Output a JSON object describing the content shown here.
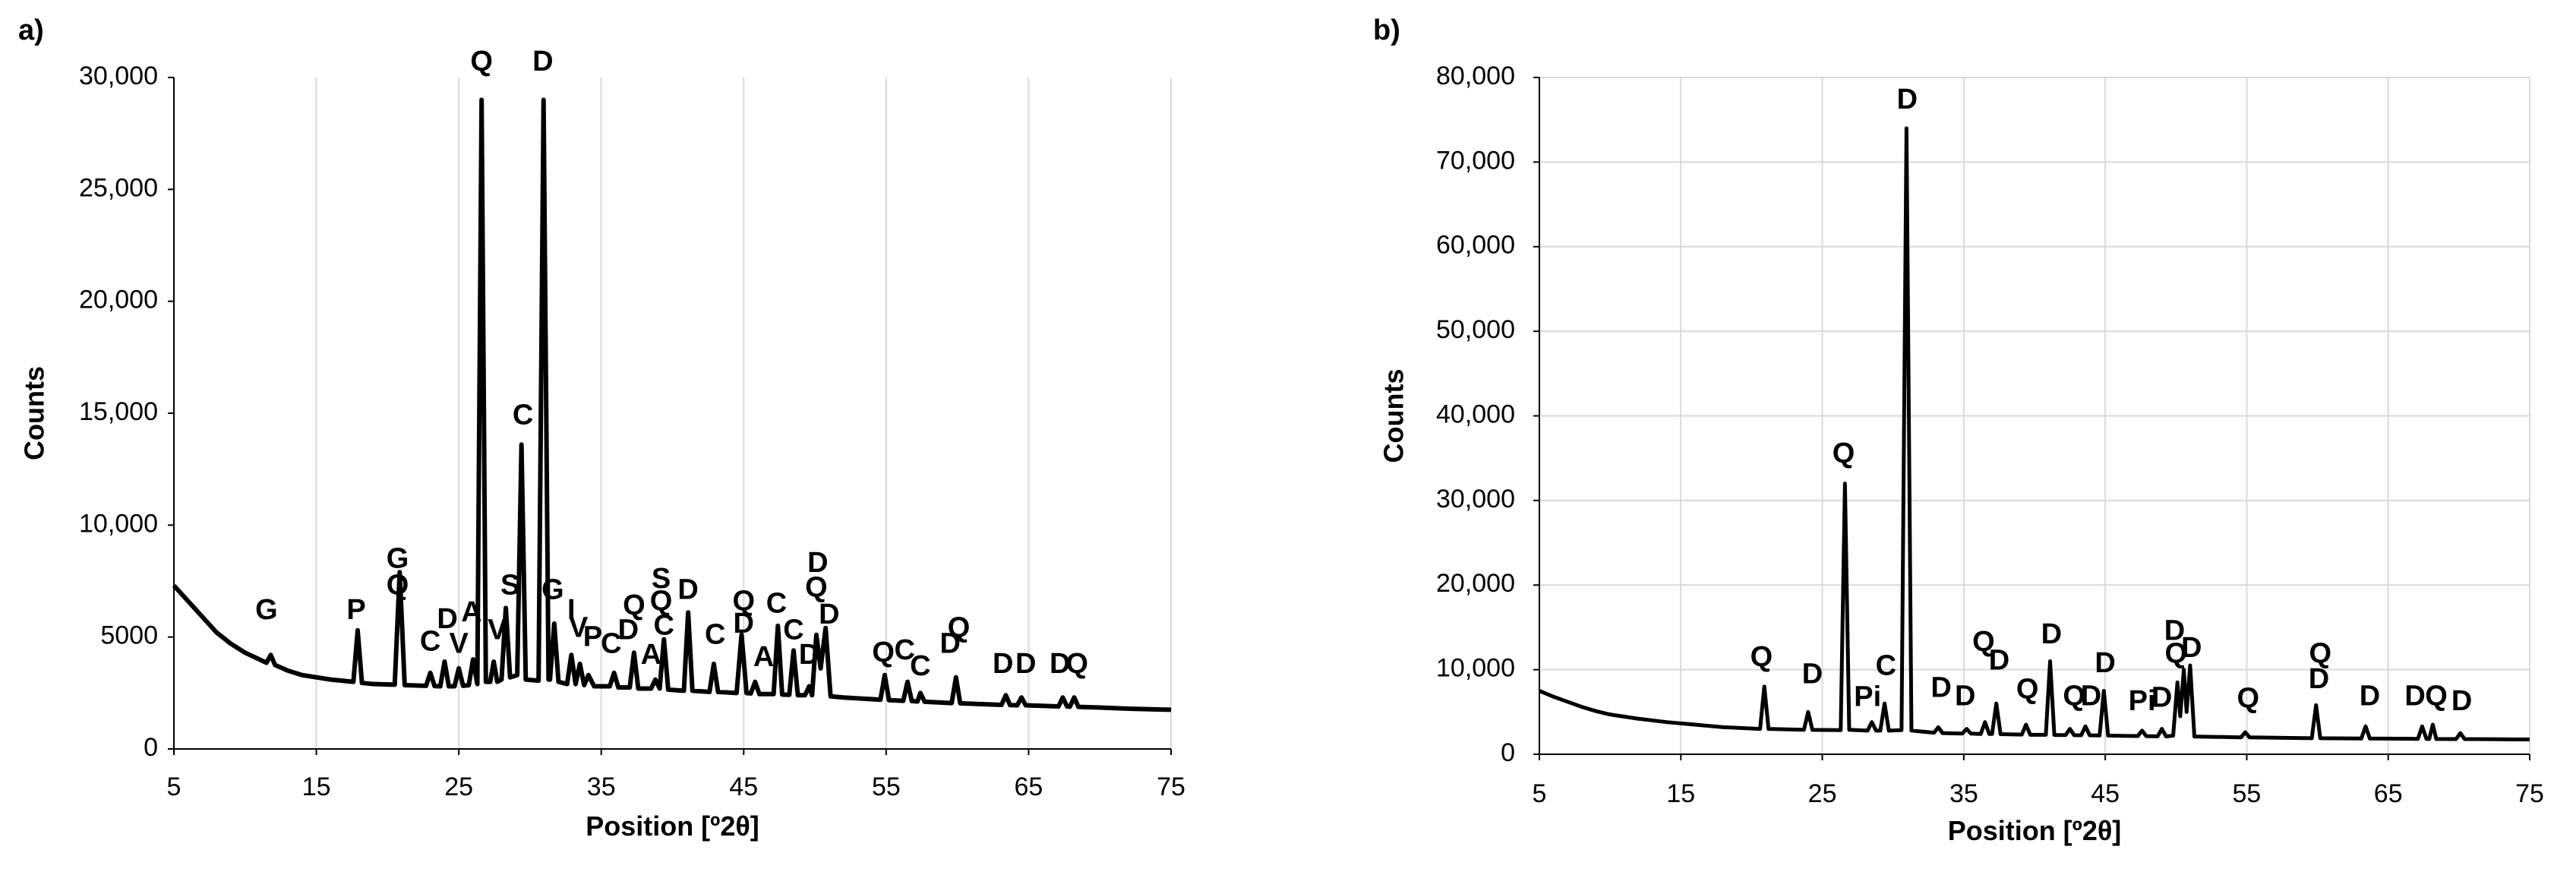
{
  "chart_data": [
    {
      "type": "line",
      "panel_label": "a)",
      "xlabel": "Position [º2θ]",
      "ylabel": "Counts",
      "color": "#000000",
      "grid": "x",
      "xlim": [
        5,
        75
      ],
      "xticks": [
        5,
        15,
        25,
        35,
        45,
        55,
        65,
        75
      ],
      "ylim": [
        0,
        30000
      ],
      "yticks": [
        0,
        5000,
        {
          "value": 10000,
          "label": "10,000"
        },
        {
          "value": 15000,
          "label": "15,000"
        },
        {
          "value": 20000,
          "label": "20,000"
        },
        {
          "value": 25000,
          "label": "25,000"
        },
        {
          "value": 30000,
          "label": "30,000"
        }
      ],
      "x": [
        5,
        6,
        7,
        8,
        9,
        10,
        11,
        11.5,
        11.8,
        12.1,
        13,
        14,
        16,
        17.6,
        17.9,
        18.2,
        19,
        20.5,
        20.85,
        21.2,
        22.7,
        23.0,
        23.3,
        23.7,
        24.0,
        24.3,
        24.7,
        25.0,
        25.3,
        25.7,
        26.0,
        26.3,
        26.6,
        26.9,
        27.2,
        27.45,
        27.7,
        28.0,
        28.3,
        28.6,
        29.1,
        29.4,
        29.7,
        30.6,
        30.95,
        31.3,
        31.4,
        31.7,
        32.0,
        32.6,
        32.9,
        33.2,
        33.5,
        33.8,
        34.1,
        34.5,
        35.6,
        35.9,
        36.2,
        37.0,
        37.3,
        37.6,
        38.5,
        38.8,
        39.1,
        39.4,
        39.7,
        40.8,
        41.1,
        41.4,
        42.6,
        42.9,
        43.2,
        44.5,
        44.85,
        45.2,
        45.5,
        45.8,
        46.1,
        47.1,
        47.4,
        47.7,
        48.2,
        48.5,
        48.8,
        49.3,
        49.6,
        49.8,
        50.1,
        50.4,
        50.75,
        51.1,
        52,
        54.6,
        54.9,
        55.2,
        56.2,
        56.5,
        56.8,
        57.2,
        57.4,
        57.7,
        59.6,
        59.9,
        60.2,
        63.1,
        63.4,
        63.7,
        64.2,
        64.5,
        64.8,
        67.1,
        67.4,
        67.7,
        67.9,
        68.2,
        68.5,
        70,
        72,
        75
      ],
      "values": [
        7300,
        6600,
        5900,
        5200,
        4700,
        4300,
        4000,
        3850,
        4200,
        3750,
        3500,
        3300,
        3100,
        3000,
        5300,
        2950,
        2900,
        2870,
        7900,
        2850,
        2820,
        3400,
        2810,
        2800,
        3900,
        2800,
        2800,
        3600,
        2820,
        2850,
        4000,
        2900,
        29000,
        3000,
        3000,
        3900,
        3000,
        3100,
        6300,
        3200,
        3300,
        13600,
        3100,
        3050,
        29000,
        3100,
        3100,
        5600,
        3000,
        2900,
        4200,
        2900,
        3800,
        2850,
        3300,
        2800,
        2800,
        3400,
        2750,
        2750,
        4300,
        2700,
        2700,
        3100,
        2700,
        4900,
        2650,
        2600,
        6100,
        2600,
        2550,
        3800,
        2550,
        2500,
        5100,
        2500,
        2480,
        3000,
        2450,
        2450,
        5500,
        2430,
        2420,
        4400,
        2400,
        2400,
        2800,
        2400,
        5100,
        3600,
        5400,
        2350,
        2300,
        2200,
        3300,
        2180,
        2150,
        3000,
        2140,
        2120,
        2500,
        2110,
        2050,
        3200,
        2040,
        1970,
        2400,
        1960,
        1950,
        2300,
        1950,
        1900,
        2300,
        1900,
        1890,
        2300,
        1880,
        1850,
        1800,
        1750
      ],
      "annotations": [
        {
          "text": "G",
          "x": 11.5,
          "y": 5800
        },
        {
          "text": "P",
          "x": 17.8,
          "y": 5800
        },
        {
          "text": "G",
          "x": 20.7,
          "y": 8100
        },
        {
          "text": "Q",
          "x": 20.7,
          "y": 6900
        },
        {
          "text": "C",
          "x": 23,
          "y": 4400
        },
        {
          "text": "D",
          "x": 24.2,
          "y": 5400
        },
        {
          "text": "V",
          "x": 25,
          "y": 4300
        },
        {
          "text": "A",
          "x": 25.9,
          "y": 5700
        },
        {
          "text": "Q",
          "x": 26.6,
          "y": 30300
        },
        {
          "text": "V",
          "x": 27.7,
          "y": 4900
        },
        {
          "text": "S",
          "x": 28.6,
          "y": 6900
        },
        {
          "text": "C",
          "x": 29.5,
          "y": 14500
        },
        {
          "text": "D",
          "x": 30.9,
          "y": 30300
        },
        {
          "text": "G",
          "x": 31.6,
          "y": 6700
        },
        {
          "text": "I",
          "x": 32.9,
          "y": 5800
        },
        {
          "text": "V",
          "x": 33.4,
          "y": 5000
        },
        {
          "text": "P",
          "x": 34.4,
          "y": 4600
        },
        {
          "text": "C",
          "x": 35.7,
          "y": 4300
        },
        {
          "text": "D",
          "x": 36.9,
          "y": 4900
        },
        {
          "text": "Q",
          "x": 37.3,
          "y": 6000
        },
        {
          "text": "A",
          "x": 38.5,
          "y": 3800
        },
        {
          "text": "S",
          "x": 39.2,
          "y": 7200
        },
        {
          "text": "Q",
          "x": 39.2,
          "y": 6200
        },
        {
          "text": "C",
          "x": 39.4,
          "y": 5100
        },
        {
          "text": "D",
          "x": 41.1,
          "y": 6700
        },
        {
          "text": "C",
          "x": 43,
          "y": 4700
        },
        {
          "text": "Q",
          "x": 45,
          "y": 6200
        },
        {
          "text": "D",
          "x": 45,
          "y": 5200
        },
        {
          "text": "A",
          "x": 46.4,
          "y": 3700
        },
        {
          "text": "C",
          "x": 47.3,
          "y": 6100
        },
        {
          "text": "C",
          "x": 48.5,
          "y": 4900
        },
        {
          "text": "D",
          "x": 49.6,
          "y": 3800
        },
        {
          "text": "D",
          "x": 50.2,
          "y": 7900
        },
        {
          "text": "Q",
          "x": 50.1,
          "y": 6800
        },
        {
          "text": "D",
          "x": 51,
          "y": 5600
        },
        {
          "text": "Q",
          "x": 54.8,
          "y": 3900
        },
        {
          "text": "C",
          "x": 56.3,
          "y": 4000
        },
        {
          "text": "C",
          "x": 57.4,
          "y": 3300
        },
        {
          "text": "D",
          "x": 59.5,
          "y": 4300
        },
        {
          "text": "Q",
          "x": 60.1,
          "y": 5000
        },
        {
          "text": "D",
          "x": 63.2,
          "y": 3400
        },
        {
          "text": "D",
          "x": 64.8,
          "y": 3400
        },
        {
          "text": "D",
          "x": 67.2,
          "y": 3400
        },
        {
          "text": "Q",
          "x": 68.4,
          "y": 3400
        }
      ]
    },
    {
      "type": "line",
      "panel_label": "b)",
      "xlabel": "Position [º2θ]",
      "ylabel": "Counts",
      "color": "#000000",
      "grid": "both",
      "xlim": [
        5,
        75
      ],
      "xticks": [
        5,
        15,
        25,
        35,
        45,
        55,
        65,
        75
      ],
      "ylim": [
        0,
        80000
      ],
      "yticks": [
        0,
        {
          "value": 10000,
          "label": "10,000"
        },
        {
          "value": 20000,
          "label": "20,000"
        },
        {
          "value": 30000,
          "label": "30,000"
        },
        {
          "value": 40000,
          "label": "40,000"
        },
        {
          "value": 50000,
          "label": "50,000"
        },
        {
          "value": 60000,
          "label": "60,000"
        },
        {
          "value": 70000,
          "label": "70,000"
        },
        {
          "value": 80000,
          "label": "80,000"
        }
      ],
      "x": [
        5,
        6,
        7,
        8,
        9,
        10,
        12,
        14,
        16,
        18,
        20.6,
        20.9,
        21.2,
        23.7,
        24.0,
        24.3,
        26.3,
        26.6,
        26.9,
        28.2,
        28.5,
        28.8,
        29.1,
        29.4,
        29.7,
        30.6,
        30.95,
        31.3,
        32.9,
        33.2,
        33.5,
        34.9,
        35.2,
        35.5,
        36.2,
        36.5,
        36.8,
        37.0,
        37.3,
        37.6,
        39.1,
        39.4,
        39.7,
        40.8,
        41.1,
        41.4,
        42.2,
        42.5,
        42.8,
        43.3,
        43.6,
        43.9,
        44.6,
        44.9,
        45.2,
        47.3,
        47.6,
        47.9,
        48.7,
        49.0,
        49.3,
        49.8,
        50.1,
        50.3,
        50.55,
        50.75,
        51.0,
        51.3,
        54.6,
        54.9,
        55.2,
        59.6,
        59.9,
        60.2,
        63.1,
        63.4,
        63.7,
        67.1,
        67.4,
        67.7,
        67.9,
        68.15,
        68.4,
        69.8,
        70.1,
        70.4,
        72,
        75
      ],
      "values": [
        7500,
        6800,
        6200,
        5600,
        5100,
        4700,
        4200,
        3800,
        3500,
        3200,
        3000,
        8000,
        3000,
        2900,
        5000,
        2880,
        2850,
        32000,
        2900,
        2800,
        3800,
        2800,
        2800,
        6000,
        2800,
        2850,
        74000,
        2800,
        2550,
        3200,
        2500,
        2450,
        3000,
        2450,
        2400,
        3800,
        2400,
        2400,
        6000,
        2380,
        2320,
        3500,
        2300,
        2300,
        11000,
        2280,
        2270,
        3000,
        2260,
        2250,
        3300,
        2240,
        2220,
        7500,
        2210,
        2150,
        2800,
        2140,
        2120,
        3000,
        2110,
        2200,
        8500,
        4500,
        10000,
        5000,
        10500,
        2100,
        2000,
        2600,
        2000,
        1900,
        5800,
        1900,
        1860,
        3300,
        1860,
        1820,
        3300,
        1820,
        1810,
        3500,
        1810,
        1800,
        2500,
        1800,
        1780,
        1750
      ],
      "annotations": [
        {
          "text": "Q",
          "x": 20.7,
          "y": 10400
        },
        {
          "text": "D",
          "x": 24.3,
          "y": 8400
        },
        {
          "text": "Q",
          "x": 26.5,
          "y": 34500
        },
        {
          "text": "Pi",
          "x": 28.2,
          "y": 5700
        },
        {
          "text": "C",
          "x": 29.5,
          "y": 9400
        },
        {
          "text": "D",
          "x": 31,
          "y": 76300
        },
        {
          "text": "D",
          "x": 33.4,
          "y": 6800
        },
        {
          "text": "D",
          "x": 35.1,
          "y": 5800
        },
        {
          "text": "Q",
          "x": 36.4,
          "y": 12200
        },
        {
          "text": "D",
          "x": 37.5,
          "y": 10000
        },
        {
          "text": "Q",
          "x": 39.5,
          "y": 6600
        },
        {
          "text": "D",
          "x": 41.2,
          "y": 13100
        },
        {
          "text": "Q",
          "x": 42.8,
          "y": 5800
        },
        {
          "text": "D",
          "x": 44,
          "y": 5800
        },
        {
          "text": "D",
          "x": 45,
          "y": 9700
        },
        {
          "text": "Pi",
          "x": 47.6,
          "y": 5200
        },
        {
          "text": "D",
          "x": 49,
          "y": 5600
        },
        {
          "text": "D",
          "x": 49.9,
          "y": 13500
        },
        {
          "text": "Q",
          "x": 50,
          "y": 10800
        },
        {
          "text": "D",
          "x": 51.1,
          "y": 11500
        },
        {
          "text": "Q",
          "x": 55.1,
          "y": 5500
        },
        {
          "text": "Q",
          "x": 60.2,
          "y": 10800
        },
        {
          "text": "D",
          "x": 60.1,
          "y": 7800
        },
        {
          "text": "D",
          "x": 63.7,
          "y": 5800
        },
        {
          "text": "D",
          "x": 66.9,
          "y": 5800
        },
        {
          "text": "Q",
          "x": 68.4,
          "y": 5800
        },
        {
          "text": "D",
          "x": 70.2,
          "y": 5200
        }
      ]
    }
  ]
}
